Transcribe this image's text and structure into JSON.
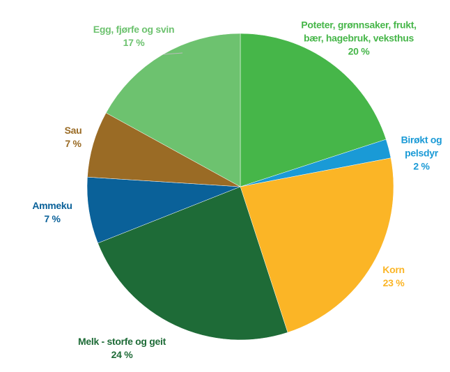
{
  "chart_data": {
    "type": "pie",
    "categories": [
      "Poteter, grønnsaker, frukt, bær, hagebruk, veksthus",
      "Birøkt og pelsdyr",
      "Korn",
      "Melk - storfe og geit",
      "Ammeku",
      "Sau",
      "Egg, fjørfe og svin"
    ],
    "values": [
      20,
      2,
      23,
      24,
      7,
      7,
      17
    ],
    "value_labels": [
      "20 %",
      "2 %",
      "23 %",
      "24 %",
      "7 %",
      "7 %",
      "17 %"
    ],
    "colors": [
      "#46b649",
      "#1a9ad6",
      "#fbb526",
      "#1e6b37",
      "#0a6199",
      "#9a6b25",
      "#6dc26f"
    ]
  }
}
